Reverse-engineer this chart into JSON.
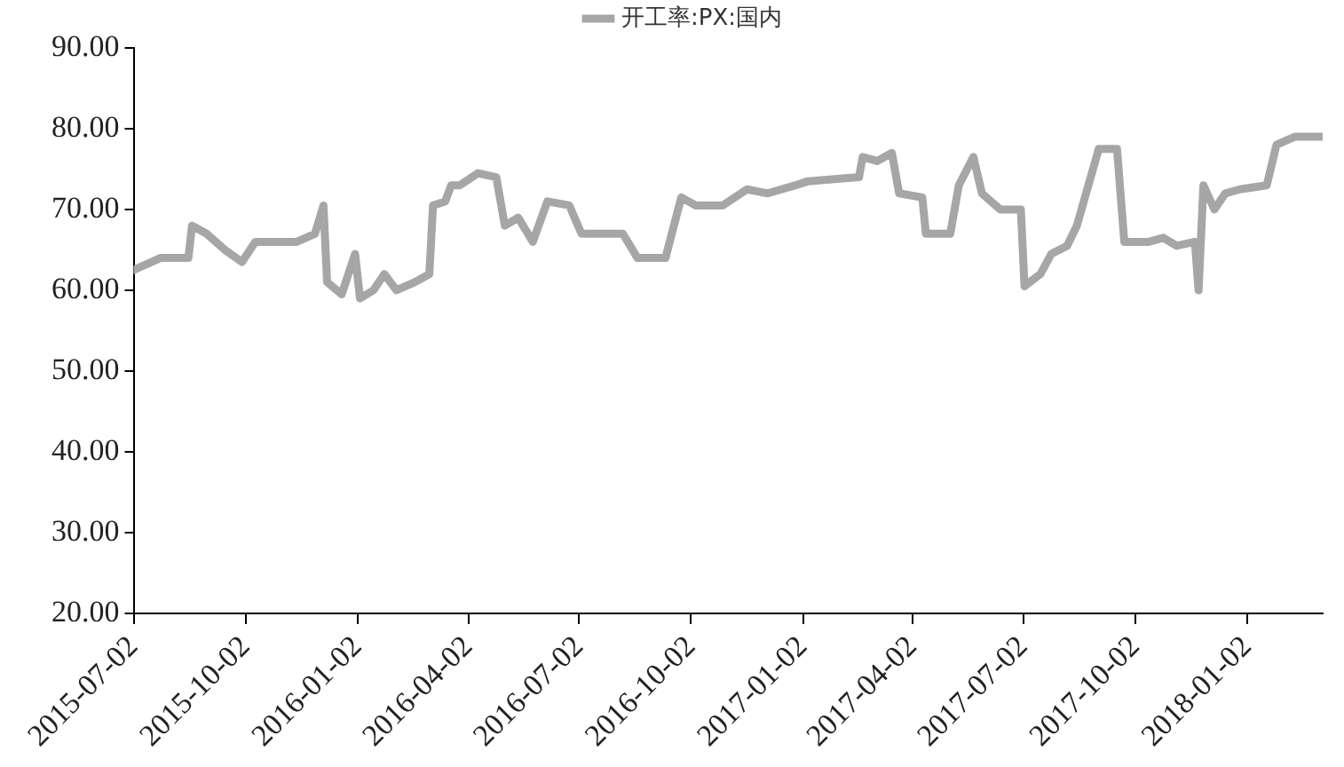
{
  "chart_data": {
    "type": "line",
    "legend": "top",
    "marker": "none",
    "line_style": "solid",
    "grid": false,
    "x": [
      "2015-07-02",
      "2015-07-24",
      "2015-08-16",
      "2015-08-19",
      "2015-08-31",
      "2015-09-15",
      "2015-09-29",
      "2015-10-10",
      "2015-11-13",
      "2015-11-28",
      "2015-12-05",
      "2015-12-08",
      "2015-12-20",
      "2015-12-31",
      "2016-01-04",
      "2016-01-15",
      "2016-01-24",
      "2016-02-03",
      "2016-02-18",
      "2016-03-01",
      "2016-03-04",
      "2016-03-14",
      "2016-03-19",
      "2016-03-26",
      "2016-04-10",
      "2016-04-25",
      "2016-05-02",
      "2016-05-13",
      "2016-05-25",
      "2016-06-06",
      "2016-06-24",
      "2016-07-04",
      "2016-08-07",
      "2016-08-19",
      "2016-09-11",
      "2016-09-24",
      "2016-10-06",
      "2016-10-28",
      "2016-11-17",
      "2016-12-04",
      "2016-12-27",
      "2017-01-06",
      "2017-02-17",
      "2017-02-20",
      "2017-03-04",
      "2017-03-16",
      "2017-03-22",
      "2017-04-10",
      "2017-04-13",
      "2017-05-03",
      "2017-05-10",
      "2017-05-22",
      "2017-05-29",
      "2017-06-13",
      "2017-06-30",
      "2017-07-03",
      "2017-07-16",
      "2017-07-25",
      "2017-08-07",
      "2017-08-15",
      "2017-09-02",
      "2017-09-17",
      "2017-09-23",
      "2017-10-13",
      "2017-10-25",
      "2017-11-05",
      "2017-11-20",
      "2017-11-23",
      "2017-11-27",
      "2017-12-06",
      "2017-12-15",
      "2017-12-27",
      "2018-01-18",
      "2018-01-26",
      "2018-02-10",
      "2018-03-04"
    ],
    "series": [
      {
        "name": "开工率:PX:国内",
        "color": "#a6a6a6",
        "values": [
          62.5,
          64,
          64,
          68,
          67,
          65,
          63.5,
          66,
          66,
          67,
          70.5,
          61,
          59.5,
          64.5,
          59,
          60,
          62,
          60,
          61,
          62,
          70.5,
          71,
          73,
          73,
          74.5,
          74,
          68,
          69,
          66,
          71,
          70.5,
          67,
          67,
          64,
          64,
          71.5,
          70.5,
          70.5,
          72.5,
          72,
          73,
          73.5,
          74,
          76.5,
          76,
          77,
          72,
          71.5,
          67,
          67,
          73,
          76.5,
          72,
          70,
          70,
          60.5,
          62,
          64.5,
          65.5,
          68,
          77.5,
          77.5,
          66,
          66,
          66.5,
          65.5,
          66,
          60,
          73,
          70,
          72,
          72.5,
          73,
          78,
          79,
          79
        ]
      }
    ],
    "xlim": [
      "2015-07-02",
      "2018-03-05"
    ],
    "xticks": [
      "2015-07-02",
      "2015-10-02",
      "2016-01-02",
      "2016-04-02",
      "2016-07-02",
      "2016-10-02",
      "2017-01-02",
      "2017-04-02",
      "2017-07-02",
      "2017-10-02",
      "2018-01-02"
    ],
    "ylim": [
      20,
      90
    ],
    "yticks": [
      {
        "value": 20,
        "label": "20.00"
      },
      {
        "value": 30,
        "label": "30.00"
      },
      {
        "value": 40,
        "label": "40.00"
      },
      {
        "value": 50,
        "label": "50.00"
      },
      {
        "value": 60,
        "label": "60.00"
      },
      {
        "value": 70,
        "label": "70.00"
      },
      {
        "value": 80,
        "label": "80.00"
      },
      {
        "value": 90,
        "label": "90.00"
      }
    ]
  }
}
